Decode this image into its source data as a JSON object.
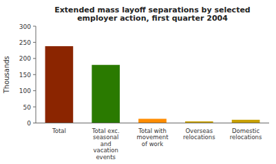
{
  "chart_data": {
    "type": "bar",
    "title": "Extended mass layoff separations by selected\nemployer action, first quarter 2004",
    "categories": [
      "Total",
      "Total exc.\nseasonal\nand\nvacation\nevents",
      "Total with\nmovement\nof work",
      "Overseas\nrelocations",
      "Domestic\nrelocations"
    ],
    "values": [
      238,
      180,
      13,
      5,
      10
    ],
    "colors": [
      "#8B2500",
      "#2A7A00",
      "#FF8C00",
      "#C8A000",
      "#C8A000"
    ],
    "ylabel": "Thousands",
    "ylim": [
      0,
      300
    ],
    "yticks": [
      0,
      50,
      100,
      150,
      200,
      250,
      300
    ],
    "grid": false
  }
}
